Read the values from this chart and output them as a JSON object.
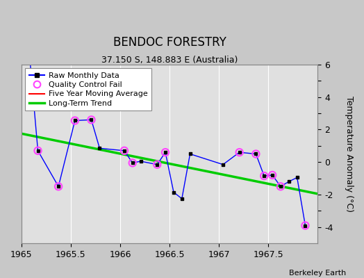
{
  "title": "BENDOC FORESTRY",
  "subtitle": "37.150 S, 148.883 E (Australia)",
  "ylabel": "Temperature Anomaly (°C)",
  "credit": "Berkeley Earth",
  "xlim": [
    1965.0,
    1968.0
  ],
  "ylim": [
    -5,
    6
  ],
  "yticks": [
    -4,
    -3,
    -2,
    -1,
    0,
    1,
    2,
    3,
    4,
    5,
    6
  ],
  "ytick_labels": [
    "-4",
    "",
    "-2",
    "",
    "0",
    "",
    "2",
    "",
    "4",
    "",
    "6"
  ],
  "xticks": [
    1965,
    1965.5,
    1966,
    1966.5,
    1967,
    1967.5
  ],
  "xtick_labels": [
    "1965",
    "1965.5",
    "1966",
    "1966.5",
    "1967",
    "1967.5"
  ],
  "background_color": "#c8c8c8",
  "plot_bg_color": "#e0e0e0",
  "raw_x": [
    1965.083,
    1965.167,
    1965.375,
    1965.542,
    1965.708,
    1965.792,
    1966.042,
    1966.125,
    1966.208,
    1966.375,
    1966.458,
    1966.542,
    1966.625,
    1966.708,
    1967.042,
    1967.208,
    1967.375,
    1967.458,
    1967.542,
    1967.625,
    1967.708,
    1967.792,
    1967.875
  ],
  "raw_y": [
    6.5,
    0.7,
    -1.5,
    2.55,
    2.6,
    0.85,
    0.7,
    -0.05,
    0.05,
    -0.15,
    0.6,
    -1.85,
    -2.25,
    0.5,
    -0.15,
    0.6,
    0.5,
    -0.85,
    -0.8,
    -1.5,
    -1.2,
    -0.95,
    -3.9
  ],
  "qc_x": [
    1965.167,
    1965.375,
    1965.542,
    1965.708,
    1966.042,
    1966.125,
    1966.375,
    1966.458,
    1967.208,
    1967.375,
    1967.458,
    1967.542,
    1967.625,
    1967.875
  ],
  "qc_y": [
    0.7,
    -1.5,
    2.55,
    2.6,
    0.7,
    -0.05,
    -0.15,
    0.6,
    0.6,
    0.5,
    -0.85,
    -0.8,
    -1.5,
    -3.9
  ],
  "trend_x": [
    1965.0,
    1968.0
  ],
  "trend_y": [
    1.75,
    -1.95
  ],
  "grid_color": "#ffffff",
  "line_color": "#0000ff",
  "qc_color": "#ff44ff",
  "trend_color": "#00cc00",
  "mavg_color": "#ff0000"
}
